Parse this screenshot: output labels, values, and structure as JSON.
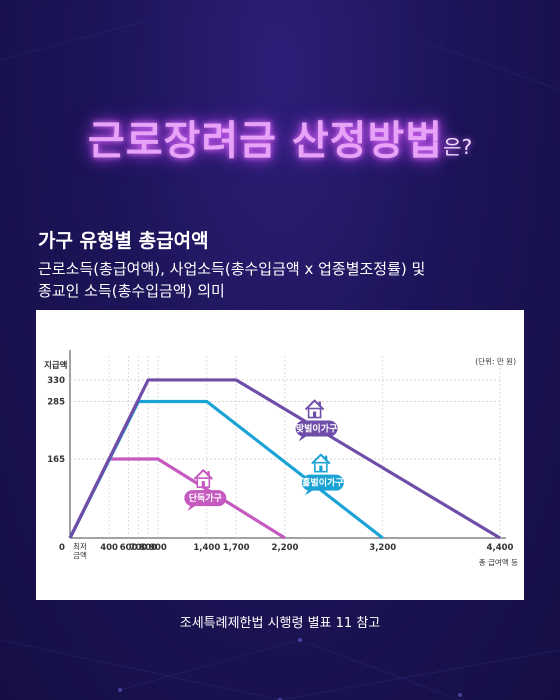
{
  "header": {
    "title": "근로장려금 산정방법",
    "title_suffix": "은?"
  },
  "section": {
    "subheading": "가구 유형별 총급여액",
    "description_lines": [
      "근로소득(총급여액), 사업소득(총수입금액 x 업종별조정률) 및",
      "종교인 소득(총수입금액) 의미"
    ]
  },
  "chart_data": {
    "type": "line",
    "ylabel": "지급액",
    "unit_note": "(단위: 만 원)",
    "xlabel": "총 급여액 등",
    "y_ticks": [
      165,
      285,
      330
    ],
    "x_ticks": [
      "0",
      "최저금액",
      "400",
      "600",
      "700",
      "800",
      "900",
      "1,400",
      "1,700",
      "2,200",
      "3,200",
      "4,400"
    ],
    "xlim": [
      0,
      4400
    ],
    "ylim": [
      0,
      380
    ],
    "series": [
      {
        "name": "단독가구",
        "color": "#c559c0",
        "points": [
          [
            0,
            0
          ],
          [
            400,
            165
          ],
          [
            900,
            165
          ],
          [
            2200,
            0
          ]
        ]
      },
      {
        "name": "홑벌이가구",
        "color": "#1ba3d6",
        "points": [
          [
            0,
            0
          ],
          [
            700,
            285
          ],
          [
            1400,
            285
          ],
          [
            3200,
            0
          ]
        ]
      },
      {
        "name": "맞벌이가구",
        "color": "#6e4ea8",
        "points": [
          [
            0,
            0
          ],
          [
            800,
            330
          ],
          [
            1700,
            330
          ],
          [
            4400,
            0
          ]
        ]
      }
    ]
  },
  "source": "조세특례제한법 시행령 별표 11 참고",
  "colors": {
    "background": "#1c1458",
    "title_glow": "#d86cf5"
  }
}
